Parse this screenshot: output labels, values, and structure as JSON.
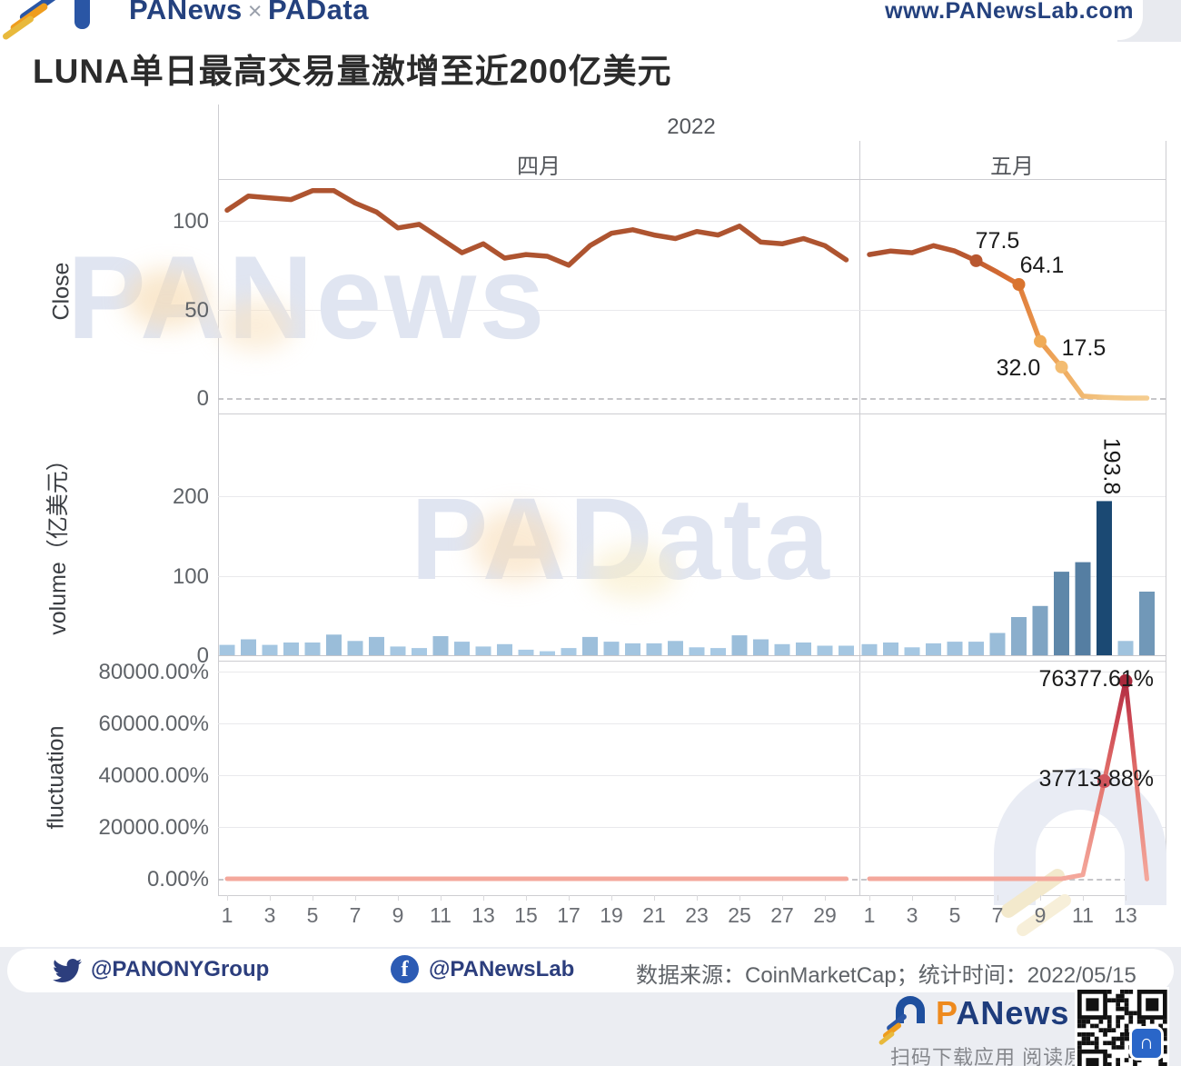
{
  "page": {
    "header": {
      "brand": "PANews",
      "separator": "×",
      "brand2": "PAData",
      "url": "www.PANewsLab.com"
    },
    "title": "LUNA单日最高交易量激增至近200亿美元",
    "watermark_top": "PANews",
    "watermark_mid": "PAData",
    "footer": {
      "twitter_handle": "@PANONYGroup",
      "facebook_handle": "@PANewsLab",
      "facebook_icon_letter": "f",
      "source_line": "数据来源：CoinMarketCap；统计时间：2022/05/15",
      "logo_first_letter": "P",
      "logo_rest": "ANews",
      "qr_chip_glyph": "∩",
      "caption": "扫码下载应用 阅读原文"
    }
  },
  "chart": {
    "year_label": "2022",
    "month_labels": [
      "四月",
      "五月"
    ],
    "x_ticks_april": [
      "1",
      "3",
      "5",
      "7",
      "9",
      "11",
      "13",
      "15",
      "17",
      "19",
      "21",
      "23",
      "25",
      "27",
      "29"
    ],
    "x_ticks_may": [
      "1",
      "3",
      "5",
      "7",
      "9",
      "11",
      "13"
    ],
    "colors": {
      "april_line": "#ae5430",
      "may_gradient": [
        "#ab5130",
        "#b95730",
        "#d96f33",
        "#eb9a4e",
        "#f0b066",
        "#f3c684",
        "#f5cd90"
      ],
      "close_dots": [
        "#b85730",
        "#d9742f",
        "#f0ab57",
        "#f3bc71"
      ],
      "bar_low": "#aecfe9",
      "bar_high": "#16456f",
      "fluct_flat": "#f4a89c",
      "fluct_mid": "#e3736c",
      "fluct_peak": "#b02c41",
      "fluct_dot_12": "#d0545c",
      "fluct_dot_13": "#a82a3c",
      "annotation_text": "#1b1b1b",
      "axis_text": "#5f6368",
      "navy": "#24417e"
    }
  },
  "chart_data": [
    {
      "type": "line",
      "name": "close-price",
      "ylabel": "Close",
      "yticks": [
        {
          "value": 0,
          "label": "0"
        },
        {
          "value": 50,
          "label": "50"
        },
        {
          "value": 100,
          "label": "100"
        }
      ],
      "gridlines": [
        50,
        100
      ],
      "zero_dashed": true,
      "april_days": 30,
      "may_days": 14,
      "april": [
        106,
        114,
        113,
        112,
        117,
        117,
        110,
        105,
        96,
        98,
        90,
        82,
        87,
        79,
        81,
        80,
        75,
        86,
        93,
        95,
        92,
        90,
        94,
        92,
        97,
        88,
        87,
        90,
        86,
        78
      ],
      "may": [
        81,
        83,
        82,
        86,
        83,
        77.5,
        71,
        64.1,
        32,
        17.5,
        1.1,
        0.4,
        0.01,
        0.0002
      ],
      "annotations": [
        {
          "month": "may",
          "day": 6,
          "value": 77.5,
          "label": "77.5"
        },
        {
          "month": "may",
          "day": 8,
          "value": 64.1,
          "label": "64.1"
        },
        {
          "month": "may",
          "day": 9,
          "value": 32.0,
          "label": "32.0"
        },
        {
          "month": "may",
          "day": 10,
          "value": 17.5,
          "label": "17.5"
        }
      ]
    },
    {
      "type": "bar",
      "name": "volume",
      "ylabel": "volume（亿美元）",
      "yticks": [
        {
          "value": 0,
          "label": "0"
        },
        {
          "value": 100,
          "label": "100"
        },
        {
          "value": 200,
          "label": "200"
        }
      ],
      "gridlines": [
        100,
        200
      ],
      "zero_dashed": false,
      "april_days": 30,
      "may_days": 14,
      "april": [
        13,
        20,
        13,
        16,
        16,
        26,
        18,
        23,
        11,
        9,
        24,
        17,
        11,
        14,
        7,
        5,
        9,
        23,
        17,
        15,
        15,
        18,
        10,
        9,
        25,
        20,
        14,
        16,
        12,
        12
      ],
      "may": [
        14,
        16,
        10,
        15,
        17,
        17,
        28,
        48,
        62,
        105,
        117,
        193.8,
        18,
        80
      ],
      "annotations": [
        {
          "month": "may",
          "day": 12,
          "value": 193.8,
          "label": "193.8"
        }
      ]
    },
    {
      "type": "line",
      "name": "fluctuation",
      "ylabel": "fluctuation",
      "yticks": [
        {
          "value": 0,
          "label": "0.00%"
        },
        {
          "value": 20000,
          "label": "20000.00%"
        },
        {
          "value": 40000,
          "label": "40000.00%"
        },
        {
          "value": 60000,
          "label": "60000.00%"
        },
        {
          "value": 80000,
          "label": "80000.00%"
        }
      ],
      "gridlines": [
        20000,
        40000,
        60000,
        80000
      ],
      "zero_dashed": true,
      "april_days": 30,
      "may_days": 14,
      "april": [
        0,
        0,
        0,
        0,
        0,
        0,
        0,
        0,
        0,
        0,
        0,
        0,
        0,
        0,
        0,
        0,
        0,
        0,
        0,
        0,
        0,
        0,
        0,
        0,
        0,
        0,
        0,
        0,
        0,
        0
      ],
      "may": [
        0,
        0,
        0,
        0,
        0,
        0,
        0,
        0,
        0,
        0,
        1500,
        37713.88,
        76377.61,
        -100
      ],
      "annotations": [
        {
          "month": "may",
          "day": 12,
          "value": 37713.88,
          "label": "37713.88%"
        },
        {
          "month": "may",
          "day": 13,
          "value": 76377.61,
          "label": "76377.61%"
        }
      ]
    }
  ]
}
